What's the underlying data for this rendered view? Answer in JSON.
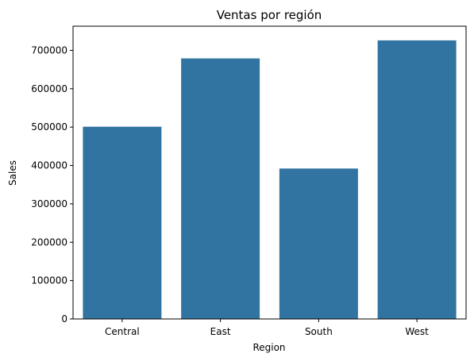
{
  "chart_data": {
    "type": "bar",
    "title": "Ventas por región",
    "xlabel": "Region",
    "ylabel": "Sales",
    "categories": [
      "Central",
      "East",
      "South",
      "West"
    ],
    "values": [
      501000,
      679000,
      392000,
      726000
    ],
    "ylim": [
      0,
      763000
    ],
    "yticks": [
      0,
      100000,
      200000,
      300000,
      400000,
      500000,
      600000,
      700000
    ],
    "grid": false,
    "legend": "none",
    "colors": {
      "bar": "#3274a1",
      "axis": "#000000",
      "background": "#ffffff"
    }
  }
}
